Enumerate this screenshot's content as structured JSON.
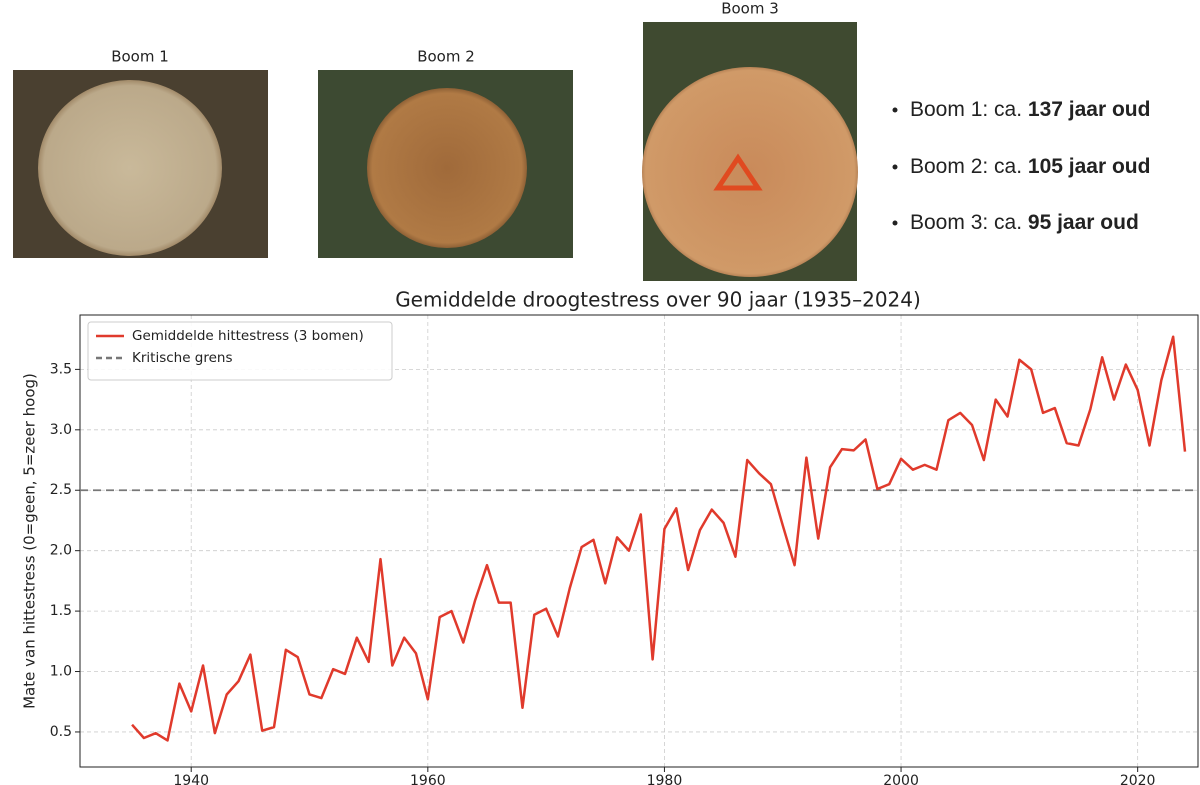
{
  "images": [
    {
      "caption": "Boom 1"
    },
    {
      "caption": "Boom 2"
    },
    {
      "caption": "Boom 3"
    }
  ],
  "bullets": [
    {
      "text": "Boom 1: ca. ",
      "bold": "137 jaar oud"
    },
    {
      "text": "Boom 2: ca. ",
      "bold": "105 jaar oud"
    },
    {
      "text": "Boom 3: ca. ",
      "bold": "95 jaar oud"
    }
  ],
  "chart_data": {
    "type": "line",
    "title": "Gemiddelde droogtestress over 90 jaar (1935–2024)",
    "y_label": "Mate van hittestress (0=geen, 5=zeer hoog)",
    "x": [
      1935,
      1936,
      1937,
      1938,
      1939,
      1940,
      1941,
      1942,
      1943,
      1944,
      1945,
      1946,
      1947,
      1948,
      1949,
      1950,
      1951,
      1952,
      1953,
      1954,
      1955,
      1956,
      1957,
      1958,
      1959,
      1960,
      1961,
      1962,
      1963,
      1964,
      1965,
      1966,
      1967,
      1968,
      1969,
      1970,
      1971,
      1972,
      1973,
      1974,
      1975,
      1976,
      1977,
      1978,
      1979,
      1980,
      1981,
      1982,
      1983,
      1984,
      1985,
      1986,
      1987,
      1988,
      1989,
      1990,
      1991,
      1992,
      1993,
      1994,
      1995,
      1996,
      1997,
      1998,
      1999,
      2000,
      2001,
      2002,
      2003,
      2004,
      2005,
      2006,
      2007,
      2008,
      2009,
      2010,
      2011,
      2012,
      2013,
      2014,
      2015,
      2016,
      2017,
      2018,
      2019,
      2020,
      2021,
      2022,
      2023,
      2024
    ],
    "series": [
      {
        "name": "Gemiddelde hittestress (3 bomen)",
        "color": "#e03a2c",
        "values": [
          0.56,
          0.45,
          0.49,
          0.43,
          0.9,
          0.67,
          1.05,
          0.49,
          0.81,
          0.92,
          1.14,
          0.51,
          0.54,
          1.18,
          1.12,
          0.81,
          0.78,
          1.02,
          0.98,
          1.28,
          1.08,
          1.93,
          1.05,
          1.28,
          1.15,
          0.77,
          1.45,
          1.5,
          1.24,
          1.59,
          1.88,
          1.57,
          1.57,
          0.7,
          1.47,
          1.52,
          1.29,
          1.69,
          2.03,
          2.09,
          1.73,
          2.11,
          2.0,
          2.3,
          1.1,
          2.18,
          2.35,
          1.84,
          2.17,
          2.34,
          2.23,
          1.95,
          2.75,
          2.64,
          2.55,
          2.21,
          1.88,
          2.77,
          2.1,
          2.69,
          2.84,
          2.83,
          2.92,
          2.51,
          2.55,
          2.76,
          2.67,
          2.71,
          2.67,
          3.08,
          3.14,
          3.04,
          2.75,
          3.25,
          3.11,
          3.58,
          3.5,
          3.14,
          3.18,
          2.89,
          2.87,
          3.17,
          3.6,
          3.25,
          3.54,
          3.33,
          2.87,
          3.41,
          3.77,
          2.82
        ]
      }
    ],
    "hlines": [
      {
        "name": "Kritische grens",
        "value": 2.5,
        "color": "#777777"
      }
    ],
    "xlim": [
      1930.6,
      2025.1
    ],
    "ylim": [
      0.21,
      3.95
    ],
    "xticks": [
      1940,
      1960,
      1980,
      2000,
      2020
    ],
    "yticks": [
      0.5,
      {
        "value": 1,
        "label": "1.0"
      },
      1.5,
      {
        "value": 2,
        "label": "2.0"
      },
      2.5,
      {
        "value": 3,
        "label": "3.0"
      },
      3.5
    ],
    "grid": true,
    "legend": "upper left"
  }
}
